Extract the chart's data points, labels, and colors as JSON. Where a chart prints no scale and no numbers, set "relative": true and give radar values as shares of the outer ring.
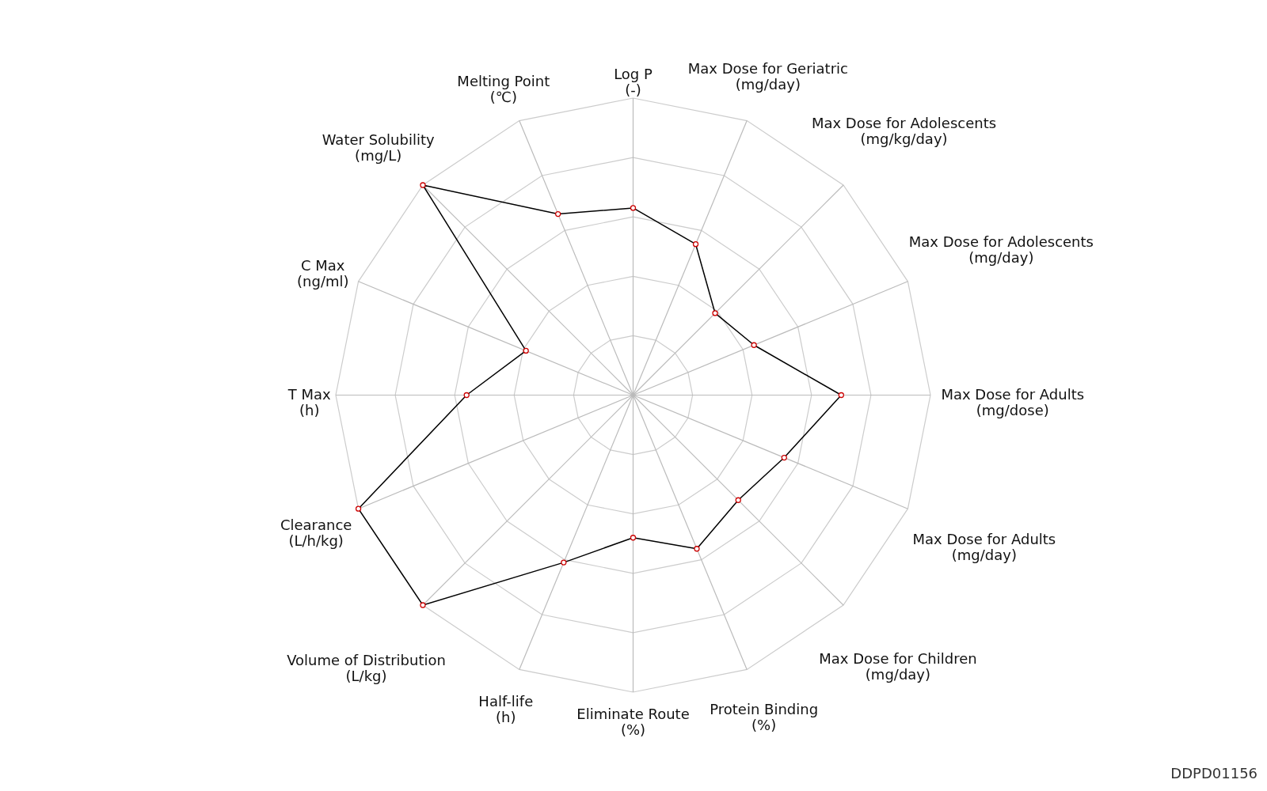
{
  "chart_data": {
    "type": "radar",
    "relative": true,
    "grid": true,
    "legend": false,
    "marker": "circle",
    "line_style": "solid",
    "categories": [
      "Log P\n(-)",
      "Max Dose for Geriatric\n(mg/day)",
      "Max Dose for Adolescents\n(mg/kg/day)",
      "Max Dose for Adolescents\n(mg/day)",
      "Max Dose for Adults\n(mg/dose)",
      "Max Dose for Adults\n(mg/day)",
      "Max Dose for Children\n(mg/day)",
      "Protein Binding\n(%)",
      "Eliminate Route\n(%)",
      "Half-life\n(h)",
      "Volume of Distribution\n(L/kg)",
      "Clearance\n(L/h/kg)",
      "T Max\n(h)",
      "C Max\n(ng/ml)",
      "Water Solubility\n(mg/L)",
      "Melting Point\n(℃)"
    ],
    "series": [
      {
        "color": "#000000",
        "values": [
          0.63,
          0.55,
          0.39,
          0.44,
          0.7,
          0.55,
          0.5,
          0.56,
          0.48,
          0.61,
          1.0,
          1.0,
          0.56,
          0.39,
          1.0,
          0.66
        ]
      }
    ],
    "annotations": [
      "DDPD01156"
    ]
  }
}
